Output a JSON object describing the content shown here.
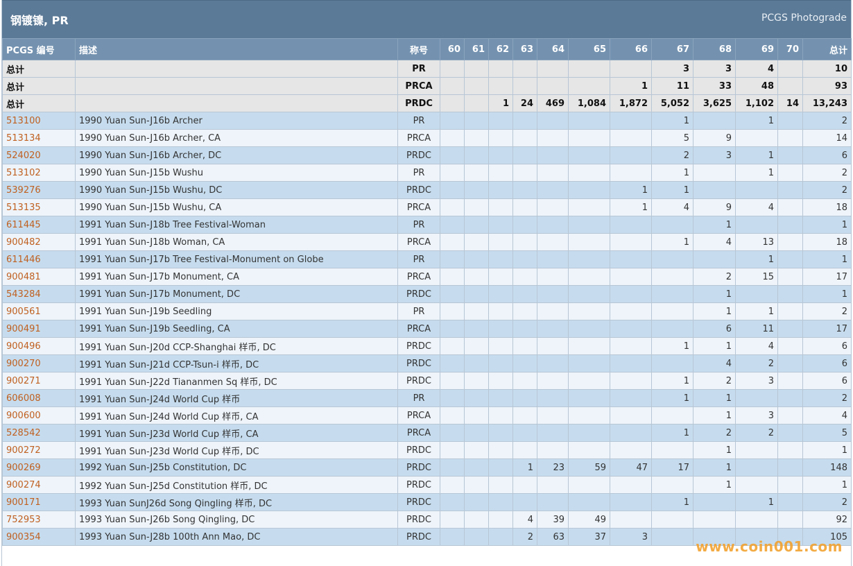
{
  "title": "钢镀镍, PR",
  "photograde_link": "PCGS Photograde",
  "headers": {
    "pcgs": "PCGS 编号",
    "desc": "描述",
    "designation": "称号",
    "grades": [
      "60",
      "61",
      "62",
      "63",
      "64",
      "65",
      "66",
      "67",
      "68",
      "69",
      "70"
    ],
    "total": "总计"
  },
  "totals": [
    {
      "label": "总计",
      "designation": "PR",
      "grades": [
        "",
        "",
        "",
        "",
        "",
        "",
        "",
        "3",
        "3",
        "4",
        ""
      ],
      "total": "10"
    },
    {
      "label": "总计",
      "designation": "PRCA",
      "grades": [
        "",
        "",
        "",
        "",
        "",
        "",
        "1",
        "11",
        "33",
        "48",
        ""
      ],
      "total": "93"
    },
    {
      "label": "总计",
      "designation": "PRDC",
      "grades": [
        "",
        "",
        "1",
        "24",
        "469",
        "1,084",
        "1,872",
        "5,052",
        "3,625",
        "1,102",
        "14"
      ],
      "total": "13,243"
    }
  ],
  "rows": [
    {
      "code": "513100",
      "desc": "1990 Yuan Sun-J16b Archer",
      "designation": "PR",
      "grades": [
        "",
        "",
        "",
        "",
        "",
        "",
        "",
        "1",
        "",
        "1",
        ""
      ],
      "total": "2"
    },
    {
      "code": "513134",
      "desc": "1990 Yuan Sun-J16b Archer, CA",
      "designation": "PRCA",
      "grades": [
        "",
        "",
        "",
        "",
        "",
        "",
        "",
        "5",
        "9",
        "",
        ""
      ],
      "total": "14"
    },
    {
      "code": "524020",
      "desc": "1990 Yuan Sun-J16b Archer, DC",
      "designation": "PRDC",
      "grades": [
        "",
        "",
        "",
        "",
        "",
        "",
        "",
        "2",
        "3",
        "1",
        ""
      ],
      "total": "6"
    },
    {
      "code": "513102",
      "desc": "1990 Yuan Sun-J15b Wushu",
      "designation": "PR",
      "grades": [
        "",
        "",
        "",
        "",
        "",
        "",
        "",
        "1",
        "",
        "1",
        ""
      ],
      "total": "2"
    },
    {
      "code": "539276",
      "desc": "1990 Yuan Sun-J15b Wushu, DC",
      "designation": "PRDC",
      "grades": [
        "",
        "",
        "",
        "",
        "",
        "",
        "1",
        "1",
        "",
        "",
        ""
      ],
      "total": "2"
    },
    {
      "code": "513135",
      "desc": "1990 Yuan Sun-J15b Wushu, CA",
      "designation": "PRCA",
      "grades": [
        "",
        "",
        "",
        "",
        "",
        "",
        "1",
        "4",
        "9",
        "4",
        ""
      ],
      "total": "18"
    },
    {
      "code": "611445",
      "desc": "1991 Yuan Sun-J18b Tree Festival-Woman",
      "designation": "PR",
      "grades": [
        "",
        "",
        "",
        "",
        "",
        "",
        "",
        "",
        "1",
        "",
        ""
      ],
      "total": "1"
    },
    {
      "code": "900482",
      "desc": "1991 Yuan Sun-J18b Woman, CA",
      "designation": "PRCA",
      "grades": [
        "",
        "",
        "",
        "",
        "",
        "",
        "",
        "1",
        "4",
        "13",
        ""
      ],
      "total": "18"
    },
    {
      "code": "611446",
      "desc": "1991 Yuan Sun-J17b Tree Festival-Monument on Globe",
      "designation": "PR",
      "grades": [
        "",
        "",
        "",
        "",
        "",
        "",
        "",
        "",
        "",
        "1",
        ""
      ],
      "total": "1"
    },
    {
      "code": "900481",
      "desc": "1991 Yuan Sun-J17b Monument, CA",
      "designation": "PRCA",
      "grades": [
        "",
        "",
        "",
        "",
        "",
        "",
        "",
        "",
        "2",
        "15",
        ""
      ],
      "total": "17"
    },
    {
      "code": "543284",
      "desc": "1991 Yuan Sun-J17b Monument, DC",
      "designation": "PRDC",
      "grades": [
        "",
        "",
        "",
        "",
        "",
        "",
        "",
        "",
        "1",
        "",
        ""
      ],
      "total": "1"
    },
    {
      "code": "900561",
      "desc": "1991 Yuan Sun-J19b Seedling",
      "designation": "PR",
      "grades": [
        "",
        "",
        "",
        "",
        "",
        "",
        "",
        "",
        "1",
        "1",
        ""
      ],
      "total": "2"
    },
    {
      "code": "900491",
      "desc": "1991 Yuan Sun-J19b Seedling, CA",
      "designation": "PRCA",
      "grades": [
        "",
        "",
        "",
        "",
        "",
        "",
        "",
        "",
        "6",
        "11",
        ""
      ],
      "total": "17"
    },
    {
      "code": "900496",
      "desc": "1991 Yuan Sun-J20d CCP-Shanghai 样币, DC",
      "designation": "PRDC",
      "grades": [
        "",
        "",
        "",
        "",
        "",
        "",
        "",
        "1",
        "1",
        "4",
        ""
      ],
      "total": "6"
    },
    {
      "code": "900270",
      "desc": "1991 Yuan Sun-J21d CCP-Tsun-i 样币, DC",
      "designation": "PRDC",
      "grades": [
        "",
        "",
        "",
        "",
        "",
        "",
        "",
        "",
        "4",
        "2",
        ""
      ],
      "total": "6"
    },
    {
      "code": "900271",
      "desc": "1991 Yuan Sun-J22d Tiananmen Sq 样币, DC",
      "designation": "PRDC",
      "grades": [
        "",
        "",
        "",
        "",
        "",
        "",
        "",
        "1",
        "2",
        "3",
        ""
      ],
      "total": "6"
    },
    {
      "code": "606008",
      "desc": "1991 Yuan Sun-J24d World Cup 样币",
      "designation": "PR",
      "grades": [
        "",
        "",
        "",
        "",
        "",
        "",
        "",
        "1",
        "1",
        "",
        ""
      ],
      "total": "2"
    },
    {
      "code": "900600",
      "desc": "1991 Yuan Sun-J24d World Cup 样币, CA",
      "designation": "PRCA",
      "grades": [
        "",
        "",
        "",
        "",
        "",
        "",
        "",
        "",
        "1",
        "3",
        ""
      ],
      "total": "4"
    },
    {
      "code": "528542",
      "desc": "1991 Yuan Sun-J23d World Cup 样币, CA",
      "designation": "PRCA",
      "grades": [
        "",
        "",
        "",
        "",
        "",
        "",
        "",
        "1",
        "2",
        "2",
        ""
      ],
      "total": "5"
    },
    {
      "code": "900272",
      "desc": "1991 Yuan Sun-J23d World Cup 样币, DC",
      "designation": "PRDC",
      "grades": [
        "",
        "",
        "",
        "",
        "",
        "",
        "",
        "",
        "1",
        "",
        ""
      ],
      "total": "1"
    },
    {
      "code": "900269",
      "desc": "1992 Yuan Sun-J25b Constitution, DC",
      "designation": "PRDC",
      "grades": [
        "",
        "",
        "",
        "1",
        "23",
        "59",
        "47",
        "17",
        "1",
        "",
        ""
      ],
      "total": "148"
    },
    {
      "code": "900274",
      "desc": "1992 Yuan Sun-J25d Constitution 样币, DC",
      "designation": "PRDC",
      "grades": [
        "",
        "",
        "",
        "",
        "",
        "",
        "",
        "",
        "1",
        "",
        ""
      ],
      "total": "1"
    },
    {
      "code": "900171",
      "desc": "1993 Yuan SunJ26d Song Qingling 样币, DC",
      "designation": "PRDC",
      "grades": [
        "",
        "",
        "",
        "",
        "",
        "",
        "",
        "1",
        "",
        "1",
        ""
      ],
      "total": "2"
    },
    {
      "code": "752953",
      "desc": "1993 Yuan Sun-J26b Song Qingling, DC",
      "designation": "PRDC",
      "grades": [
        "",
        "",
        "",
        "4",
        "39",
        "49",
        "",
        "",
        "",
        "",
        ""
      ],
      "total": "92"
    },
    {
      "code": "900354",
      "desc": "1993 Yuan Sun-J28b 100th Ann Mao, DC",
      "designation": "PRDC",
      "grades": [
        "",
        "",
        "",
        "2",
        "63",
        "37",
        "3",
        "",
        "",
        "",
        ""
      ],
      "total": "105"
    }
  ],
  "watermark": "www.coin001.com"
}
